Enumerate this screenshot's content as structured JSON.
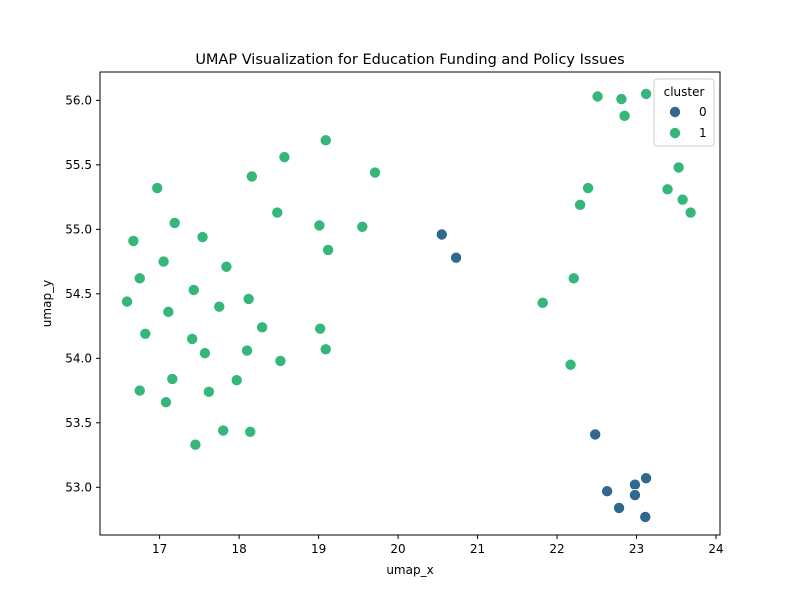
{
  "chart_data": {
    "type": "scatter",
    "title": "UMAP Visualization for Education Funding and Policy Issues",
    "xlabel": "umap_x",
    "ylabel": "umap_y",
    "xlim": [
      16.25,
      24.05
    ],
    "ylim": [
      52.63,
      56.22
    ],
    "xticks": [
      "17",
      "18",
      "19",
      "20",
      "21",
      "22",
      "23",
      "24"
    ],
    "yticks": [
      "53.0",
      "53.5",
      "54.0",
      "54.5",
      "55.0",
      "55.5",
      "56.0"
    ],
    "grid": false,
    "legend": {
      "title": "cluster",
      "placement": "top-right",
      "entries": [
        "0",
        "1"
      ]
    },
    "colors": {
      "0": "#31688e",
      "1": "#35b779"
    },
    "series": [
      {
        "name": "0",
        "points": [
          [
            20.55,
            54.96
          ],
          [
            20.73,
            54.78
          ],
          [
            22.48,
            53.41
          ],
          [
            23.12,
            53.07
          ],
          [
            22.98,
            53.02
          ],
          [
            22.63,
            52.97
          ],
          [
            22.98,
            52.94
          ],
          [
            22.78,
            52.84
          ],
          [
            23.11,
            52.77
          ]
        ]
      },
      {
        "name": "1",
        "points": [
          [
            16.67,
            54.91
          ],
          [
            16.59,
            54.44
          ],
          [
            16.75,
            54.62
          ],
          [
            16.82,
            54.19
          ],
          [
            16.75,
            53.75
          ],
          [
            16.97,
            55.32
          ],
          [
            17.05,
            54.75
          ],
          [
            17.11,
            54.36
          ],
          [
            17.08,
            53.66
          ],
          [
            17.16,
            53.84
          ],
          [
            17.19,
            55.05
          ],
          [
            17.43,
            54.53
          ],
          [
            17.41,
            54.15
          ],
          [
            17.45,
            53.33
          ],
          [
            17.54,
            54.94
          ],
          [
            17.57,
            54.04
          ],
          [
            17.62,
            53.74
          ],
          [
            17.75,
            54.4
          ],
          [
            17.8,
            53.44
          ],
          [
            17.84,
            54.71
          ],
          [
            17.97,
            53.83
          ],
          [
            18.1,
            54.06
          ],
          [
            18.12,
            54.46
          ],
          [
            18.14,
            53.43
          ],
          [
            18.16,
            55.41
          ],
          [
            18.29,
            54.24
          ],
          [
            18.48,
            55.13
          ],
          [
            18.52,
            53.98
          ],
          [
            18.57,
            55.56
          ],
          [
            19.01,
            55.03
          ],
          [
            19.02,
            54.23
          ],
          [
            19.09,
            55.69
          ],
          [
            19.09,
            54.07
          ],
          [
            19.12,
            54.84
          ],
          [
            19.55,
            55.02
          ],
          [
            19.71,
            55.44
          ],
          [
            21.82,
            54.43
          ],
          [
            22.17,
            53.95
          ],
          [
            22.21,
            54.62
          ],
          [
            22.29,
            55.19
          ],
          [
            22.39,
            55.32
          ],
          [
            22.51,
            56.03
          ],
          [
            22.81,
            56.01
          ],
          [
            22.85,
            55.88
          ],
          [
            23.12,
            56.05
          ],
          [
            23.39,
            55.31
          ],
          [
            23.53,
            55.48
          ],
          [
            23.58,
            55.23
          ],
          [
            23.68,
            55.13
          ]
        ]
      }
    ]
  }
}
